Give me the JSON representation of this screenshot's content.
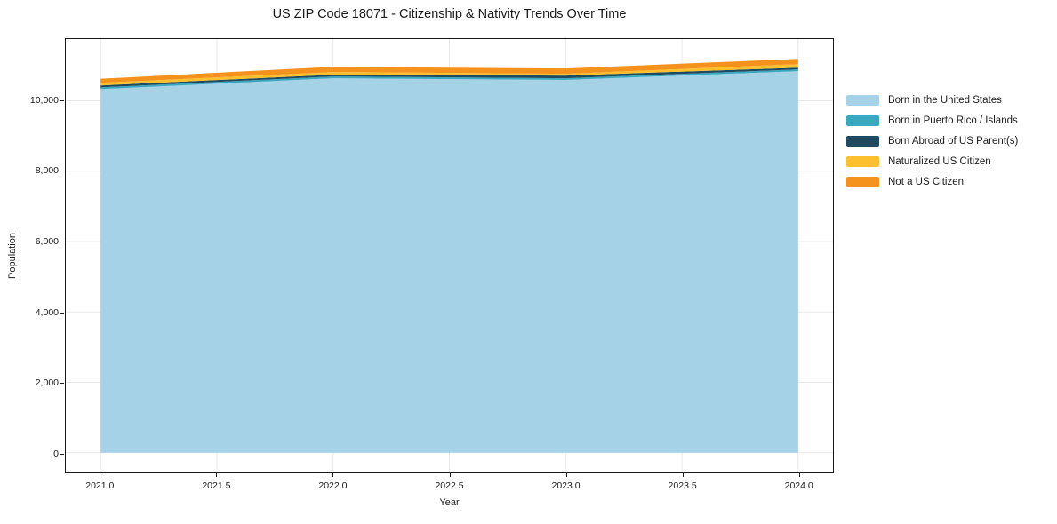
{
  "chart_data": {
    "type": "area",
    "stacked": true,
    "title": "US ZIP Code 18071 - Citizenship & Nativity Trends Over Time",
    "xlabel": "Year",
    "ylabel": "Population",
    "x": [
      2021,
      2022,
      2023,
      2024
    ],
    "series": [
      {
        "name": "Born in the United States",
        "color": "#a6d2e7",
        "values": [
          10330,
          10640,
          10590,
          10840
        ]
      },
      {
        "name": "Born in Puerto Rico / Islands",
        "color": "#3aa8c1",
        "values": [
          50,
          50,
          50,
          50
        ]
      },
      {
        "name": "Born Abroad of US Parent(s)",
        "color": "#1f4a5f",
        "values": [
          55,
          50,
          75,
          50
        ]
      },
      {
        "name": "Naturalized US Citizen",
        "color": "#fcc02e",
        "values": [
          75,
          75,
          50,
          100
        ]
      },
      {
        "name": "Not a US Citizen",
        "color": "#f5921e",
        "values": [
          115,
          150,
          150,
          150
        ]
      }
    ],
    "xlim": [
      2020.85,
      2024.15
    ],
    "ylim": [
      -560,
      11752
    ],
    "xticks": {
      "values": [
        2021.0,
        2021.5,
        2022.0,
        2022.5,
        2023.0,
        2023.5,
        2024.0
      ],
      "labels": [
        "2021.0",
        "2021.5",
        "2022.0",
        "2022.5",
        "2023.0",
        "2023.5",
        "2024.0"
      ]
    },
    "yticks": {
      "values": [
        0,
        2000,
        4000,
        6000,
        8000,
        10000
      ],
      "labels": [
        "0",
        "2,000",
        "4,000",
        "6,000",
        "8,000",
        "10,000"
      ]
    },
    "grid": true,
    "legend_position": "right of plot, frameless"
  },
  "colors": {
    "grid": "#e8e8e8",
    "spine": "#1a1a1a",
    "text": "#1a1a1a",
    "background": "#ffffff"
  }
}
